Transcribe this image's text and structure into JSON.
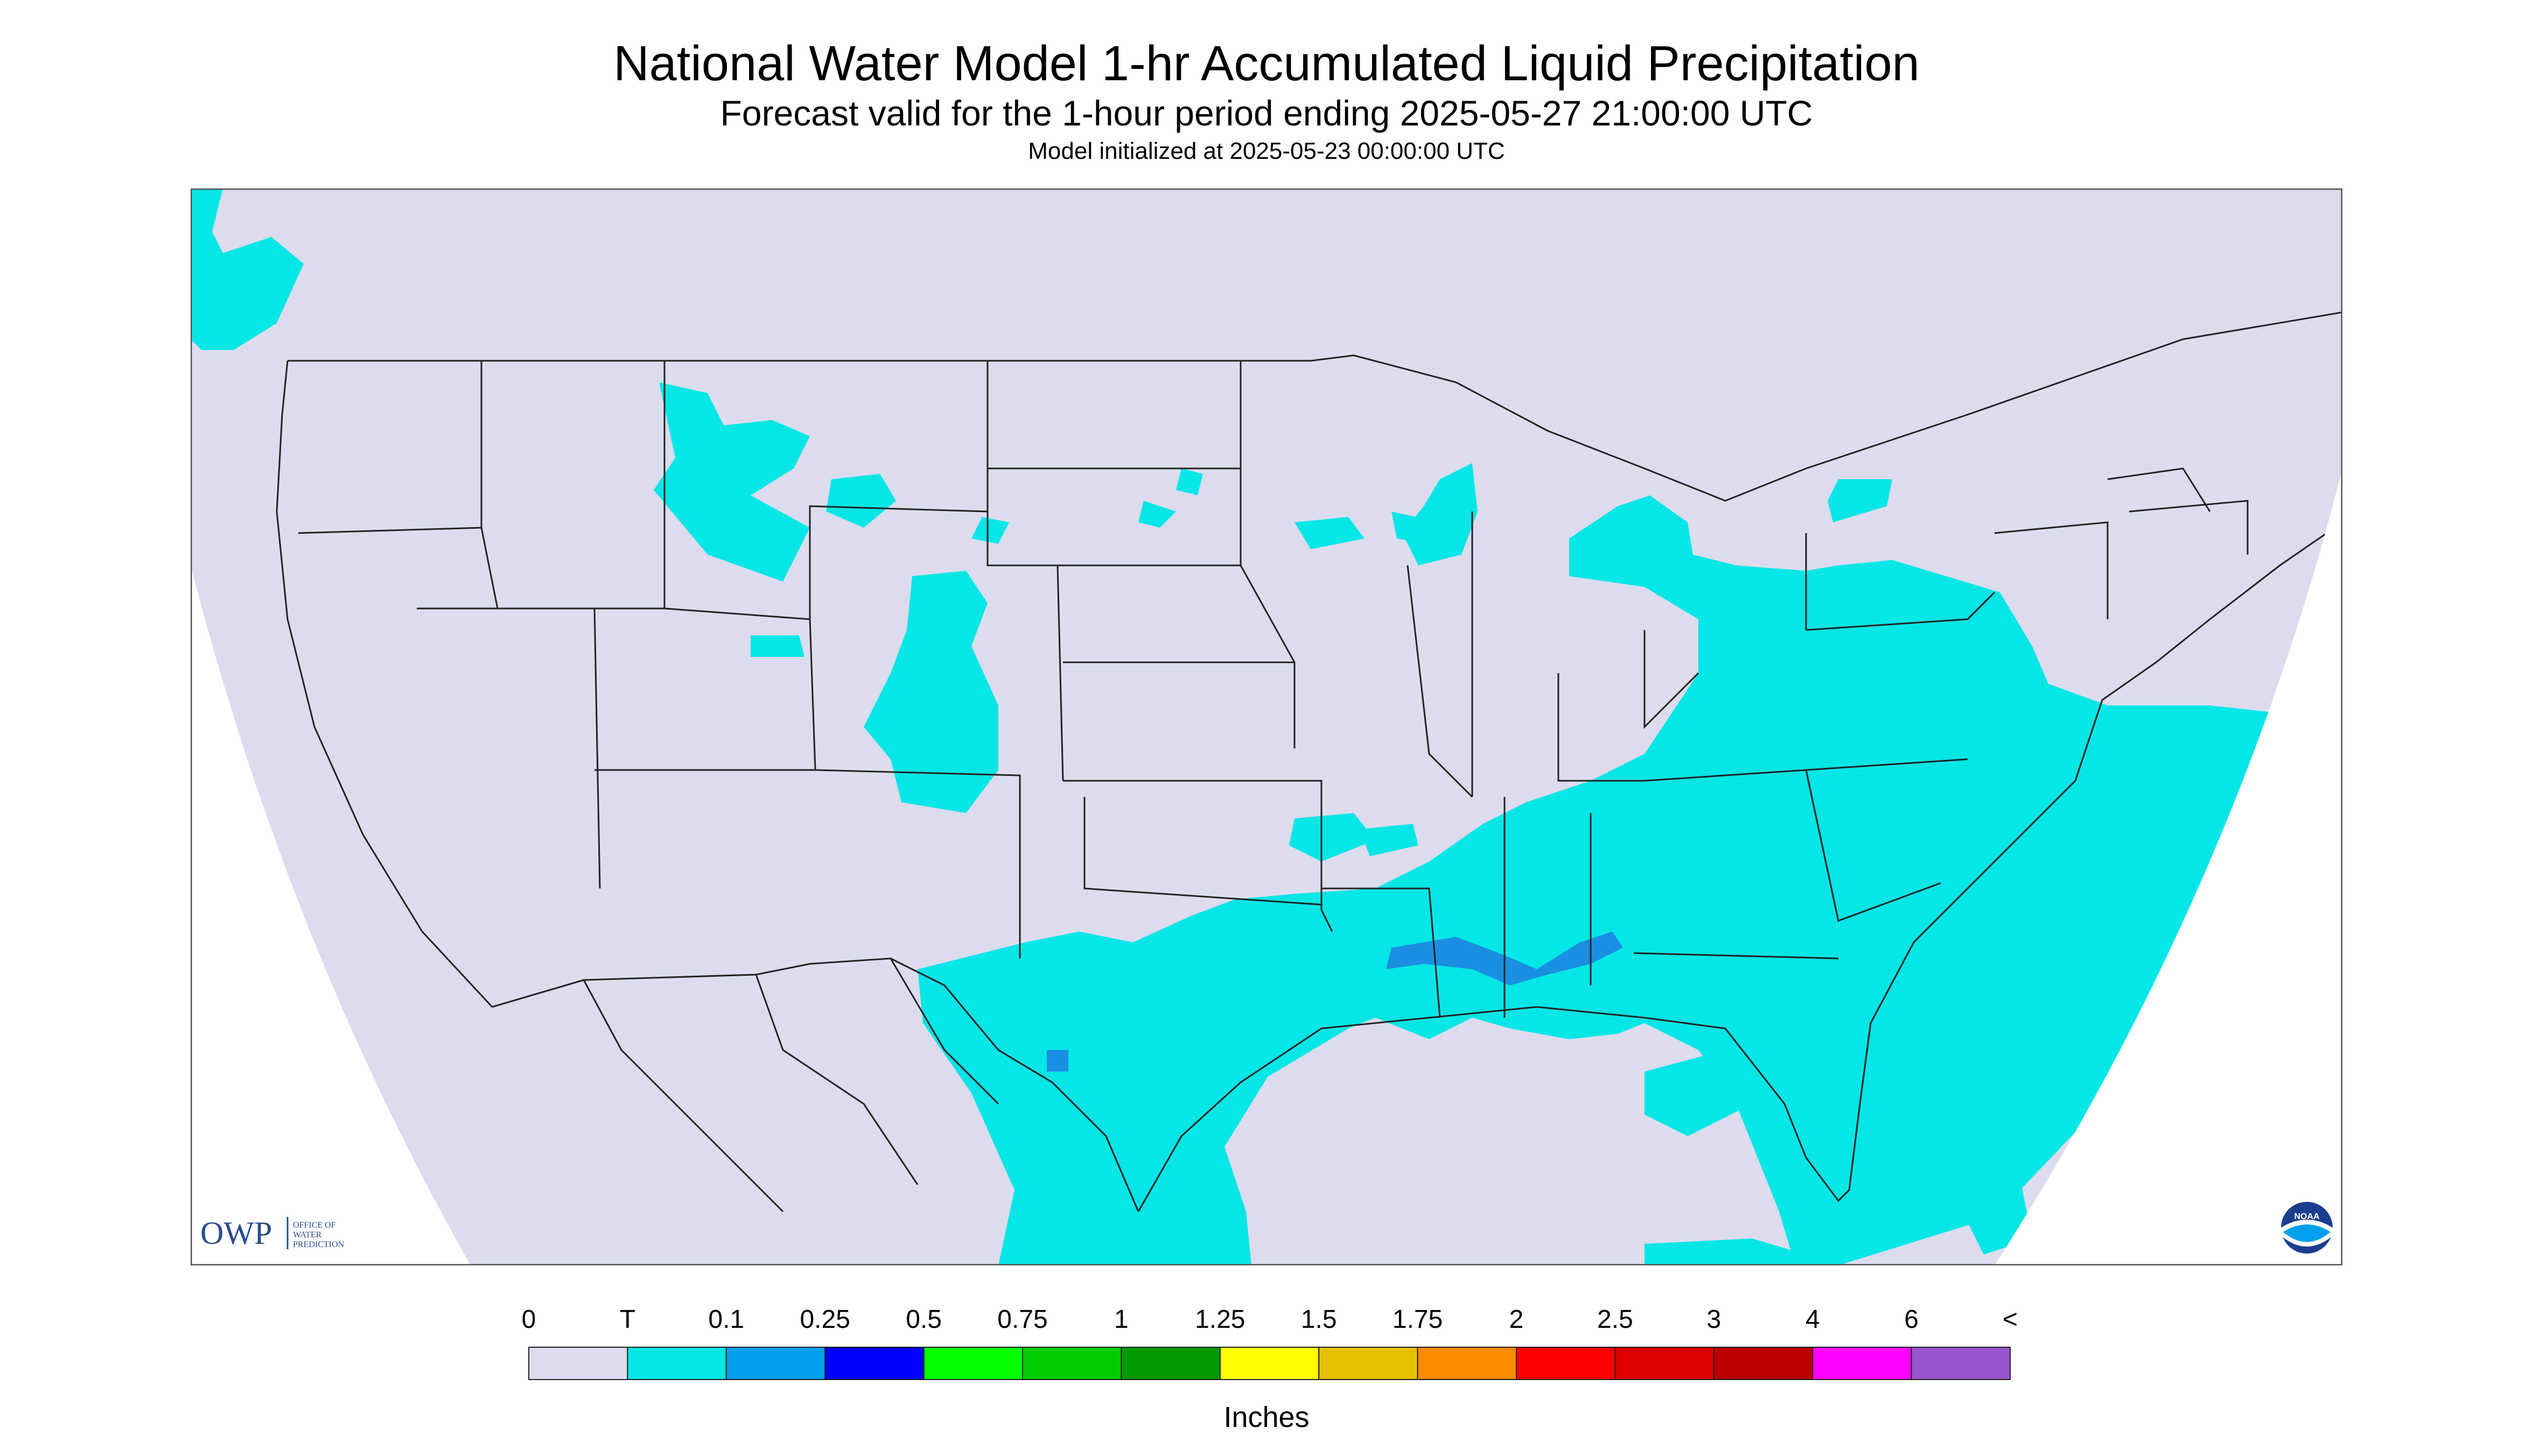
{
  "header": {
    "title": "National Water Model 1-hr Accumulated Liquid Precipitation",
    "subtitle": "Forecast valid for the 1-hour period ending 2025-05-27 21:00:00 UTC",
    "init_line": "Model initialized at 2025-05-23 00:00:00 UTC"
  },
  "map": {
    "background_color": "#dcdcee",
    "outside_color": "#ffffff",
    "border_color": "#222222",
    "precip_colors": {
      "trace": "#05e6e6",
      "light": "#1e7fe0"
    }
  },
  "logos": {
    "owp_mark": "OWP",
    "owp_text": [
      "OFFICE OF",
      "WATER",
      "PREDICTION"
    ],
    "noaa_text": "NOAA",
    "owp_icon": "owp-logo",
    "noaa_icon": "noaa-logo"
  },
  "legend": {
    "labels": [
      "0",
      "T",
      "0.1",
      "0.25",
      "0.5",
      "0.75",
      "1",
      "1.25",
      "1.5",
      "1.75",
      "2",
      "2.5",
      "3",
      "4",
      "6",
      "<"
    ],
    "colors": [
      "#dcdcee",
      "#05e6e6",
      "#00a0ee",
      "#0000ff",
      "#00ff00",
      "#00cc00",
      "#009900",
      "#ffff00",
      "#e6c000",
      "#ff8c00",
      "#ff0000",
      "#dd0000",
      "#bb0000",
      "#ff00ff",
      "#9955cc"
    ],
    "units": "Inches"
  }
}
